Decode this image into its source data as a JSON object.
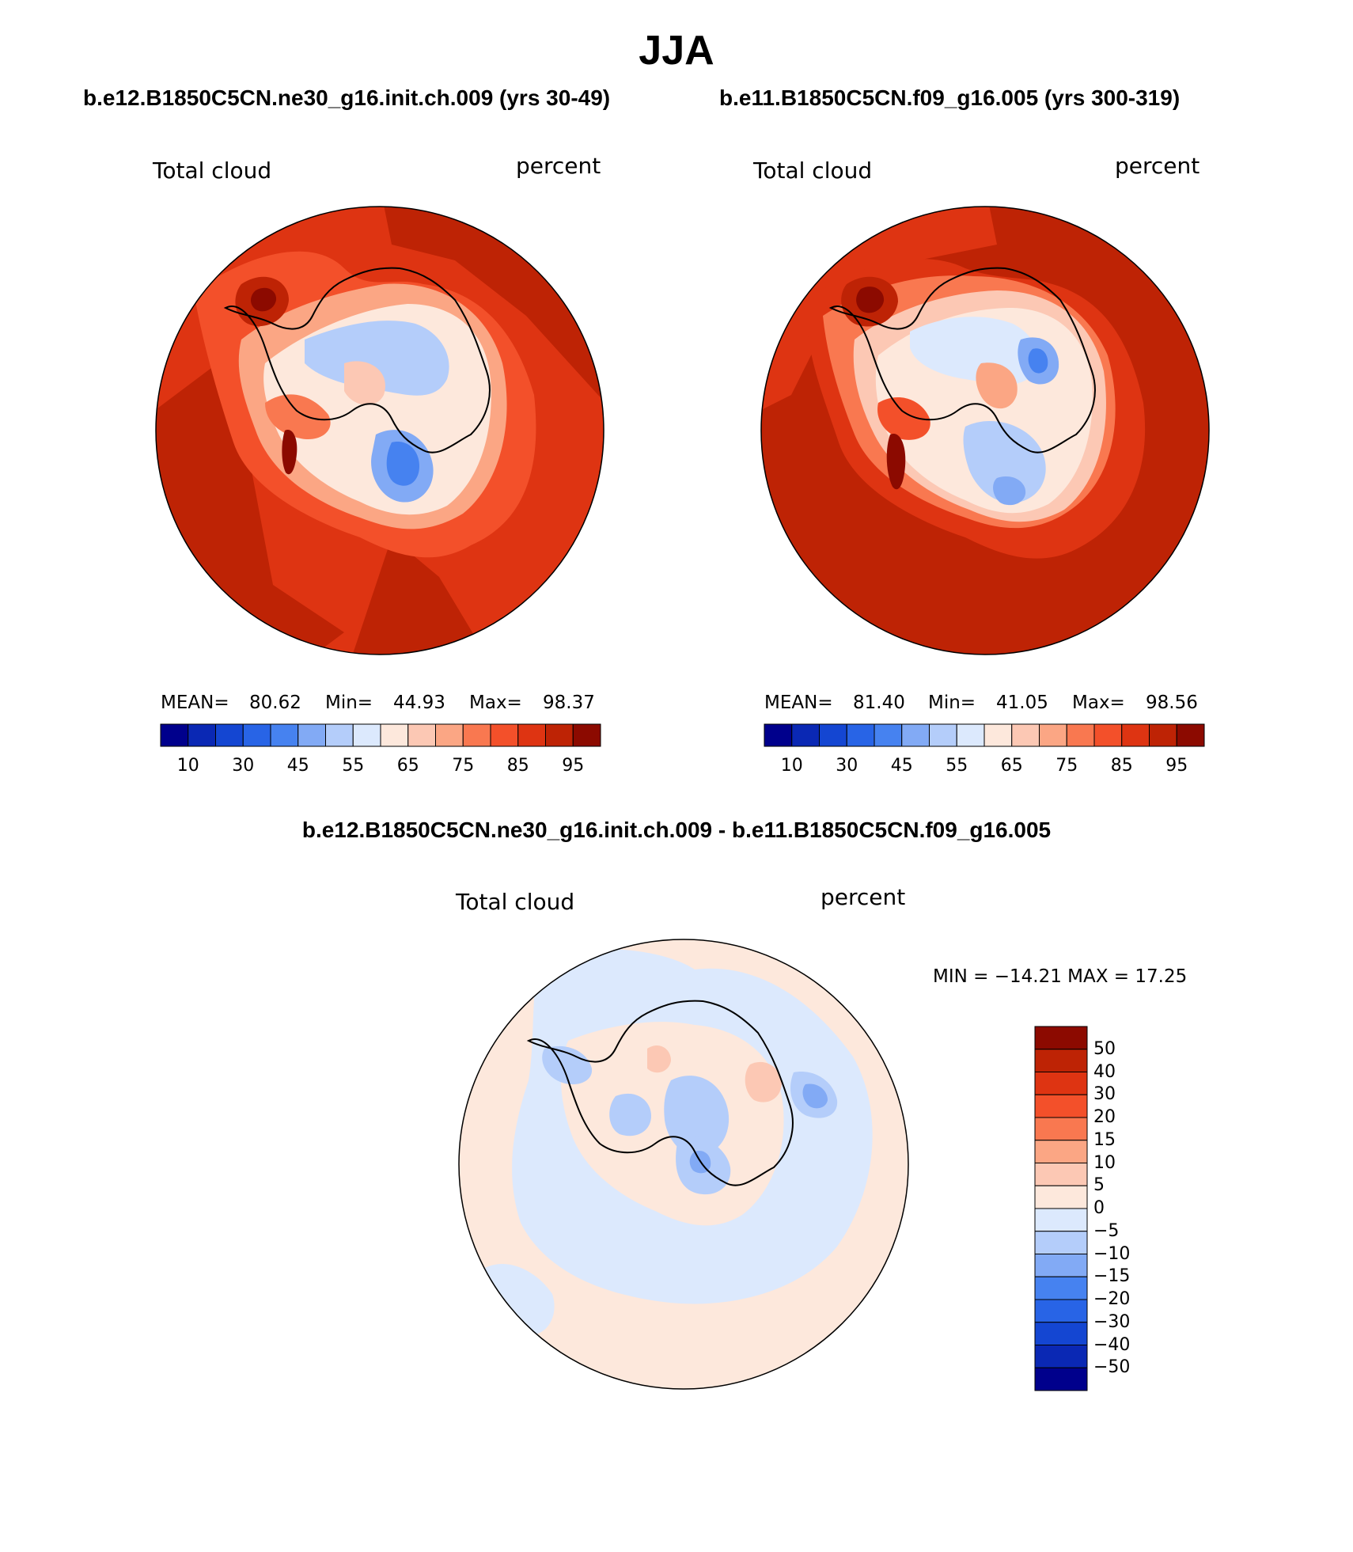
{
  "title": "JJA",
  "panels": [
    {
      "case_title": "b.e12.B1850C5CN.ne30_g16.init.ch.009 (yrs 30-49)",
      "variable_label": "Total cloud",
      "units_label": "percent",
      "mean_label": "MEAN=",
      "mean_value": "80.62",
      "min_label": "Min=",
      "min_value": "44.93",
      "max_label": "Max=",
      "max_value": "98.37",
      "colorbar_ticks": [
        "10",
        "30",
        "45",
        "55",
        "65",
        "75",
        "85",
        "95"
      ]
    },
    {
      "case_title": "b.e11.B1850C5CN.f09_g16.005 (yrs 300-319)",
      "variable_label": "Total cloud",
      "units_label": "percent",
      "mean_label": "MEAN=",
      "mean_value": "81.40",
      "min_label": "Min=",
      "min_value": "41.05",
      "max_label": "Max=",
      "max_value": "98.56",
      "colorbar_ticks": [
        "10",
        "30",
        "45",
        "55",
        "65",
        "75",
        "85",
        "95"
      ]
    }
  ],
  "difference": {
    "title": "b.e12.B1850C5CN.ne30_g16.init.ch.009 - b.e11.B1850C5CN.f09_g16.005",
    "variable_label": "Total cloud",
    "units_label": "percent",
    "min_max_text": "MIN = −14.21 MAX =   17.25",
    "colorbar_ticks": [
      "50",
      "40",
      "30",
      "20",
      "15",
      "10",
      "5",
      "0",
      "−5",
      "−10",
      "−15",
      "−20",
      "−30",
      "−40",
      "−50"
    ]
  },
  "colors": {
    "abs_scale": [
      "#00008c",
      "#0a28b4",
      "#1446d2",
      "#2864e6",
      "#4682f0",
      "#82aaf5",
      "#b4cdfa",
      "#dce9fd",
      "#fde8dc",
      "#fcc8b4",
      "#fba684",
      "#f97850",
      "#f3502a",
      "#de3412",
      "#be2305",
      "#8c0a00"
    ],
    "diff_scale": [
      "#8c0a00",
      "#be2305",
      "#de3412",
      "#f3502a",
      "#f97850",
      "#fba684",
      "#fcc8b4",
      "#fde8dc",
      "#dce9fd",
      "#b4cdfa",
      "#82aaf5",
      "#4682f0",
      "#2864e6",
      "#1446d2",
      "#0a28b4",
      "#00008c"
    ]
  }
}
